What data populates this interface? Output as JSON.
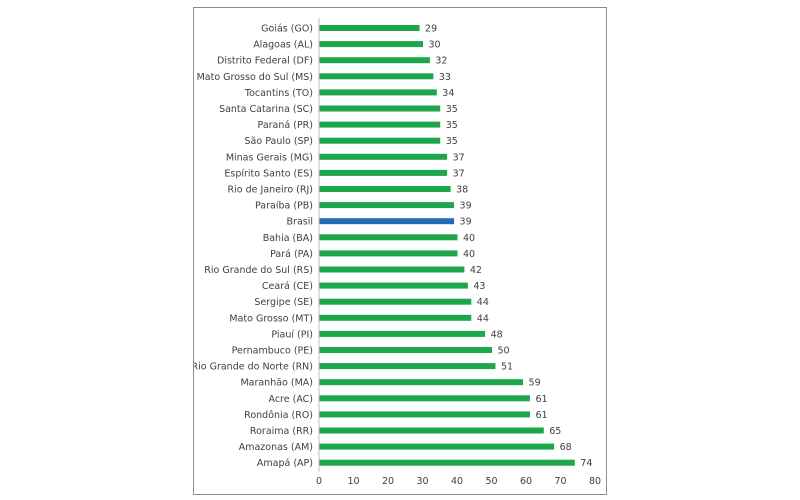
{
  "chart_data": {
    "type": "bar",
    "orientation": "horizontal",
    "title": "",
    "xlabel": "",
    "ylabel": "",
    "xlim": [
      0,
      80
    ],
    "x_ticks": [
      0,
      10,
      20,
      30,
      40,
      50,
      60,
      70,
      80
    ],
    "grid": false,
    "legend": "none",
    "colors": {
      "bar": "#1ea64a",
      "highlight": "#1f6db5"
    },
    "highlight_category": "Brasil",
    "categories": [
      "Goiás (GO)",
      "Alagoas (AL)",
      "Distrito Federal (DF)",
      "Mato Grosso do Sul (MS)",
      "Tocantins (TO)",
      "Santa Catarina (SC)",
      "Paraná (PR)",
      "São Paulo (SP)",
      "Minas Gerais (MG)",
      "Espírito Santo (ES)",
      "Rio de Janeiro (RJ)",
      "Paraíba (PB)",
      "Brasil",
      "Bahia (BA)",
      "Pará (PA)",
      "Rio Grande do Sul (RS)",
      "Ceará (CE)",
      "Sergipe (SE)",
      "Mato Grosso (MT)",
      "Piauí (PI)",
      "Pernambuco (PE)",
      "Rio Grande do Norte (RN)",
      "Maranhão (MA)",
      "Acre (AC)",
      "Rondônia (RO)",
      "Roraima (RR)",
      "Amazonas (AM)",
      "Amapá (AP)"
    ],
    "values": [
      29,
      30,
      32,
      33,
      34,
      35,
      35,
      35,
      37,
      37,
      38,
      39,
      39,
      40,
      40,
      42,
      43,
      44,
      44,
      48,
      50,
      51,
      59,
      61,
      61,
      65,
      68,
      74
    ]
  }
}
